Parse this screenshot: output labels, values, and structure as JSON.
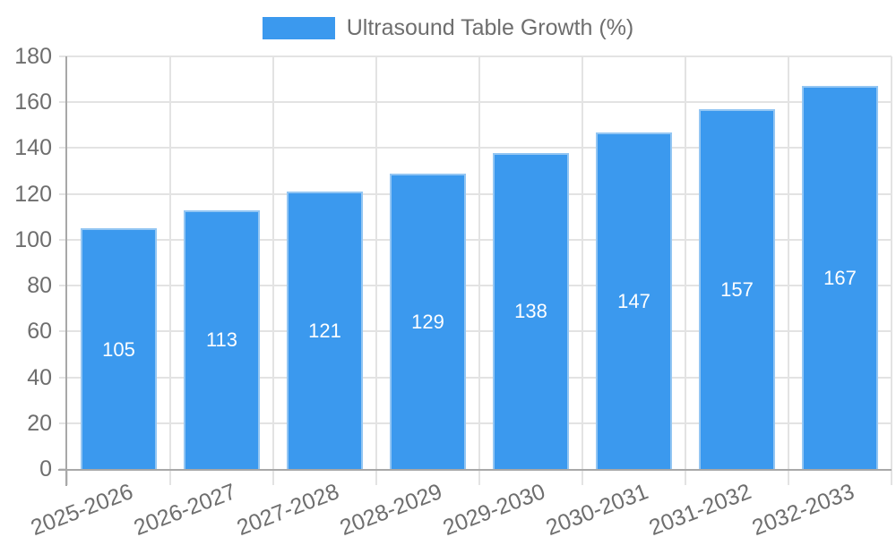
{
  "legend": {
    "label": "Ultrasound Table Growth (%)"
  },
  "chart_data": {
    "type": "bar",
    "title": "",
    "series_name": "Ultrasound Table Growth (%)",
    "categories": [
      "2025-2026",
      "2026-2027",
      "2027-2028",
      "2028-2029",
      "2029-2030",
      "2030-2031",
      "2031-2032",
      "2032-2033"
    ],
    "values": [
      105,
      113,
      121,
      129,
      138,
      147,
      157,
      167
    ],
    "value_labels": [
      "105",
      "113",
      "121",
      "129",
      "138",
      "147",
      "157",
      "167"
    ],
    "ytick_labels": [
      "0",
      "20",
      "40",
      "60",
      "80",
      "100",
      "120",
      "140",
      "160",
      "180"
    ],
    "ylim": [
      0,
      180
    ],
    "ytick_step": 20,
    "xlabel": "",
    "ylabel": "",
    "grid": true,
    "legend_position": "top",
    "colors": {
      "bar_fill": "#3b99ee",
      "bar_border": "#93c6f3",
      "value_label": "#ffffff",
      "axis_label": "#6e6e6e",
      "legend_text": "#6e6e6e",
      "gridline": "#e3e3e3",
      "axis_line": "#a8a8a8",
      "background": "#ffffff"
    }
  }
}
